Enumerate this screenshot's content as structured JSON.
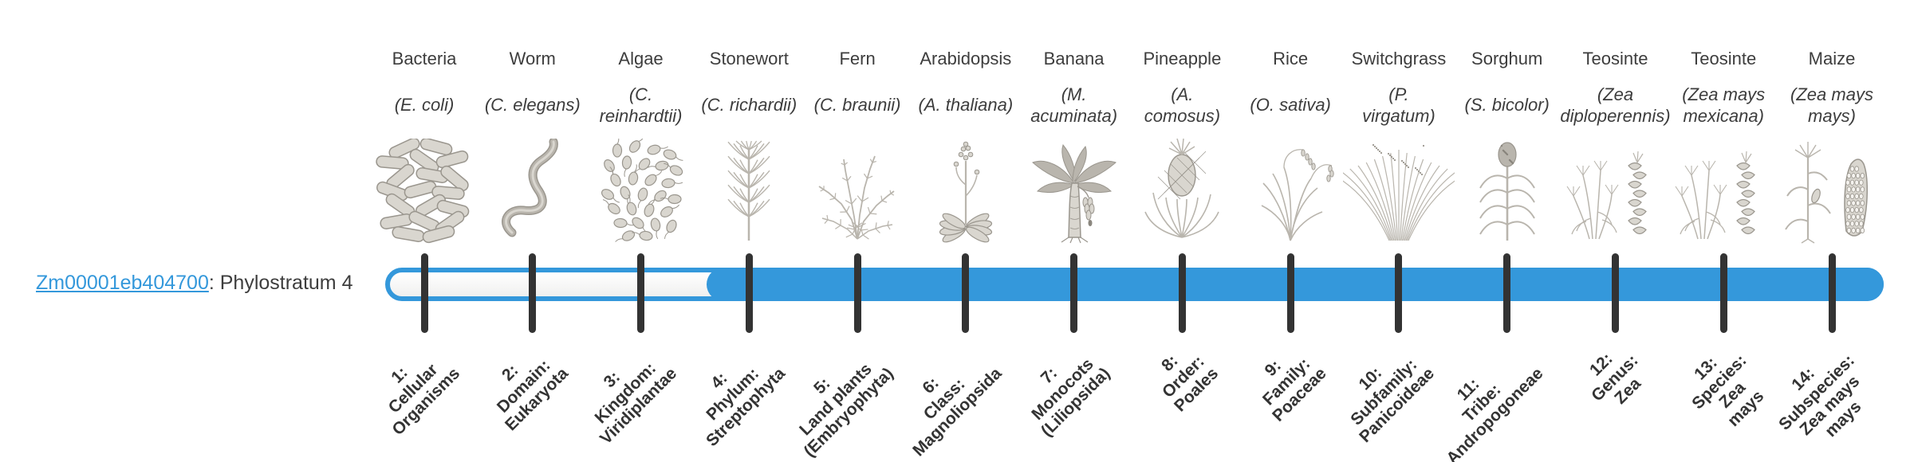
{
  "gene": {
    "id": "Zm00001eb404700",
    "label": ": Phylostratum 4"
  },
  "timeline": {
    "total_strata": 14,
    "filled_from_stratum": 4,
    "accent_blue": "#3498db",
    "tick_color": "#333333",
    "text_color": "#3d3d3d"
  },
  "organisms": [
    {
      "name": "Bacteria",
      "sci": "(E. coli)",
      "icon": "bacteria-icon",
      "stratum": "1:\nCellular\nOrganisms"
    },
    {
      "name": "Worm",
      "sci": "(C. elegans)",
      "icon": "worm-icon",
      "stratum": "2:\nDomain:\nEukaryota"
    },
    {
      "name": "Algae",
      "sci": "(C.\nreinhardtii)",
      "icon": "algae-icon",
      "stratum": "3:\nKingdom:\nViridiplantae"
    },
    {
      "name": "Stonewort",
      "sci": "(C. richardii)",
      "icon": "stonewort-icon",
      "stratum": "4:\nPhylum:\nStreptophyta"
    },
    {
      "name": "Fern",
      "sci": "(C. braunii)",
      "icon": "fern-icon",
      "stratum": "5:\nLand plants\n(Embryophyta)"
    },
    {
      "name": "Arabidopsis",
      "sci": "(A. thaliana)",
      "icon": "arabidopsis-icon",
      "stratum": "6:\nClass:\nMagnoliopsida"
    },
    {
      "name": "Banana",
      "sci": "(M.\nacuminata)",
      "icon": "banana-icon",
      "stratum": "7:\nMonocots\n(Liliopsida)"
    },
    {
      "name": "Pineapple",
      "sci": "(A.\ncomosus)",
      "icon": "pineapple-icon",
      "stratum": "8:\nOrder:\nPoales"
    },
    {
      "name": "Rice",
      "sci": "(O. sativa)",
      "icon": "rice-icon",
      "stratum": "9:\nFamily:\nPoaceae"
    },
    {
      "name": "Switchgrass",
      "sci": "(P.\nvirgatum)",
      "icon": "switchgrass-icon",
      "stratum": "10:\nSubfamily:\nPanicoideae"
    },
    {
      "name": "Sorghum",
      "sci": "(S. bicolor)",
      "icon": "sorghum-icon",
      "stratum": "11:\nTribe:\nAndropogoneae"
    },
    {
      "name": "Teosinte",
      "sci": "(Zea\ndiploperennis)",
      "icon": "teosinte-icon",
      "stratum": "12:\nGenus:\nZea"
    },
    {
      "name": "Teosinte",
      "sci": "(Zea mays\nmexicana)",
      "icon": "teosinte-icon",
      "stratum": "13:\nSpecies:\nZea\nmays"
    },
    {
      "name": "Maize",
      "sci": "(Zea mays\nmays)",
      "icon": "maize-icon",
      "stratum": "14:\nSubspecies:\nZea mays\nmays"
    }
  ]
}
